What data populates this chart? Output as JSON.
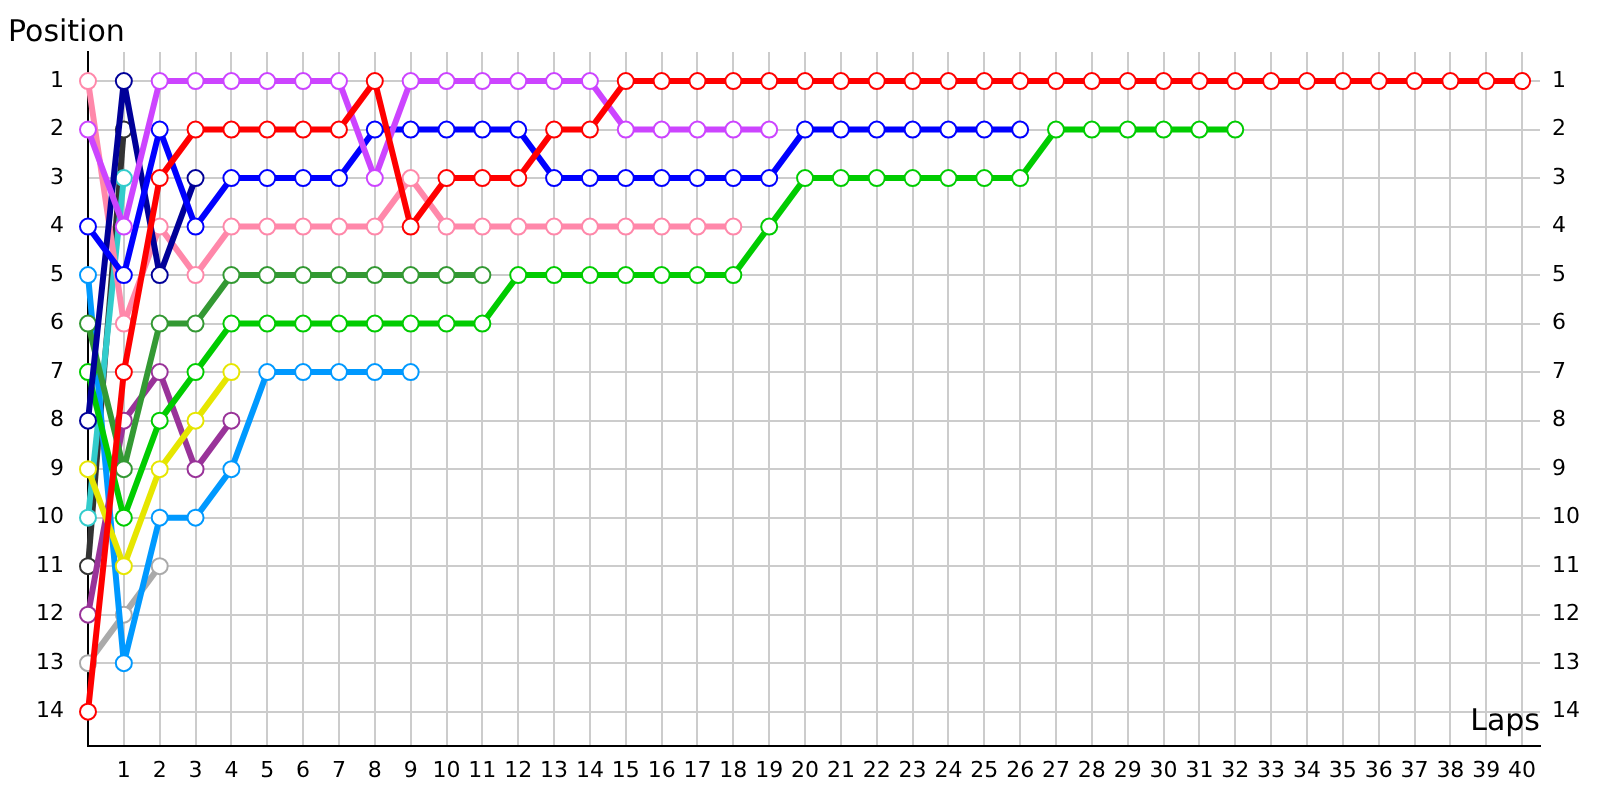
{
  "chart_data": {
    "type": "line",
    "xlabel": "Laps",
    "ylabel": "Position",
    "marker": "circle",
    "grid": true,
    "legend": false,
    "xlim": [
      0,
      40.5
    ],
    "xticks": [
      1,
      2,
      3,
      4,
      5,
      6,
      7,
      8,
      9,
      10,
      11,
      12,
      13,
      14,
      15,
      16,
      17,
      18,
      19,
      20,
      21,
      22,
      23,
      24,
      25,
      26,
      27,
      28,
      29,
      30,
      31,
      32,
      33,
      34,
      35,
      36,
      37,
      38,
      39,
      40
    ],
    "ylim": [
      14.7,
      0.4
    ],
    "yticks": [
      1,
      2,
      3,
      4,
      5,
      6,
      7,
      8,
      9,
      10,
      11,
      12,
      13,
      14
    ],
    "y2lim": [
      14.7,
      0.4
    ],
    "y2ticks": [
      1,
      2,
      3,
      4,
      5,
      6,
      7,
      8,
      9,
      10,
      11,
      12,
      13,
      14
    ],
    "series": [
      {
        "color": "#ff0000",
        "x": [
          0,
          1,
          2,
          3,
          4,
          5,
          6,
          7,
          8,
          9,
          10,
          11,
          12,
          13,
          14,
          15,
          16,
          17,
          18,
          19,
          20,
          21,
          22,
          23,
          24,
          25,
          26,
          27,
          28,
          29,
          30,
          31,
          32,
          33,
          34,
          35,
          36,
          37,
          38,
          39,
          40
        ],
        "values": [
          14,
          7,
          3,
          2,
          2,
          2,
          2,
          2,
          1,
          4,
          3,
          3,
          3,
          2,
          2,
          1,
          1,
          1,
          1,
          1,
          1,
          1,
          1,
          1,
          1,
          1,
          1,
          1,
          1,
          1,
          1,
          1,
          1,
          1,
          1,
          1,
          1,
          1,
          1,
          1,
          1
        ]
      },
      {
        "color": "#cc44ff",
        "x": [
          0,
          1,
          2,
          3,
          4,
          5,
          6,
          7,
          8,
          9,
          10,
          11,
          12,
          13,
          14,
          15,
          16,
          17,
          18,
          19
        ],
        "values": [
          2,
          4,
          1,
          1,
          1,
          1,
          1,
          1,
          3,
          1,
          1,
          1,
          1,
          1,
          1,
          2,
          2,
          2,
          2,
          2
        ]
      },
      {
        "color": "#0000ff",
        "x": [
          0,
          1,
          2,
          3,
          4,
          5,
          6,
          7,
          8,
          9,
          10,
          11,
          12,
          13,
          14,
          15,
          16,
          17,
          18,
          19,
          20,
          21,
          22,
          23,
          24,
          25,
          26
        ],
        "values": [
          4,
          5,
          2,
          4,
          3,
          3,
          3,
          3,
          2,
          2,
          2,
          2,
          2,
          3,
          3,
          3,
          3,
          3,
          3,
          3,
          2,
          2,
          2,
          2,
          2,
          2,
          2
        ]
      },
      {
        "color": "#000099",
        "x": [
          0,
          1,
          2,
          3
        ],
        "values": [
          8,
          1,
          5,
          3
        ]
      },
      {
        "color": "#ff88aa",
        "x": [
          0,
          1,
          2,
          3,
          4,
          5,
          6,
          7,
          8,
          9,
          10,
          11,
          12,
          13,
          14,
          15,
          16,
          17,
          18
        ],
        "values": [
          1,
          6,
          4,
          5,
          4,
          4,
          4,
          4,
          4,
          3,
          4,
          4,
          4,
          4,
          4,
          4,
          4,
          4,
          4
        ]
      },
      {
        "color": "#339933",
        "x": [
          0,
          1,
          2,
          3,
          4,
          5,
          6,
          7,
          8,
          9,
          10,
          11
        ],
        "values": [
          6,
          9,
          6,
          6,
          5,
          5,
          5,
          5,
          5,
          5,
          5,
          5
        ]
      },
      {
        "color": "#00cc00",
        "x": [
          0,
          1,
          2,
          3,
          4,
          5,
          6,
          7,
          8,
          9,
          10,
          11,
          12,
          13,
          14,
          15,
          16,
          17,
          18,
          19,
          20,
          21,
          22,
          23,
          24,
          25,
          26,
          27,
          28,
          29,
          30,
          31,
          32
        ],
        "values": [
          7,
          10,
          8,
          7,
          6,
          6,
          6,
          6,
          6,
          6,
          6,
          6,
          5,
          5,
          5,
          5,
          5,
          5,
          5,
          4,
          3,
          3,
          3,
          3,
          3,
          3,
          3,
          2,
          2,
          2,
          2,
          2,
          2
        ]
      },
      {
        "color": "#e6e600",
        "x": [
          0,
          1,
          2,
          3,
          4
        ],
        "values": [
          9,
          11,
          9,
          8,
          7
        ]
      },
      {
        "color": "#993399",
        "x": [
          0,
          1,
          2,
          3,
          4
        ],
        "values": [
          12,
          8,
          7,
          9,
          8
        ]
      },
      {
        "color": "#0099ff",
        "x": [
          0,
          1,
          2,
          3,
          4,
          5,
          6,
          7,
          8,
          9
        ],
        "values": [
          5,
          13,
          10,
          10,
          9,
          7,
          7,
          7,
          7,
          7
        ]
      },
      {
        "color": "#33cccc",
        "x": [
          0,
          1
        ],
        "values": [
          10,
          3
        ]
      },
      {
        "color": "#333333",
        "x": [
          0,
          1
        ],
        "values": [
          11,
          2
        ]
      },
      {
        "color": "#aaaaaa",
        "x": [
          0,
          1,
          2
        ],
        "values": [
          13,
          12,
          11
        ]
      }
    ]
  }
}
